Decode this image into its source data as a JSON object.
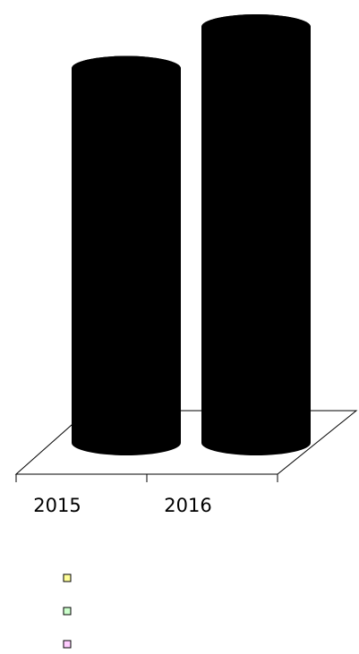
{
  "chart_data": {
    "type": "bar",
    "style": "3d-cylinder",
    "categories": [
      "2015",
      "2016"
    ],
    "values": [
      0.9,
      1.0
    ],
    "bar_color": "#000000",
    "floor_color": "#000000",
    "grid": false,
    "legend_position": "bottom-left",
    "legend": [
      {
        "name": "",
        "color": "#ffff99"
      },
      {
        "name": "",
        "color": "#ccffcc"
      },
      {
        "name": "",
        "color": "#ffccff"
      }
    ]
  }
}
